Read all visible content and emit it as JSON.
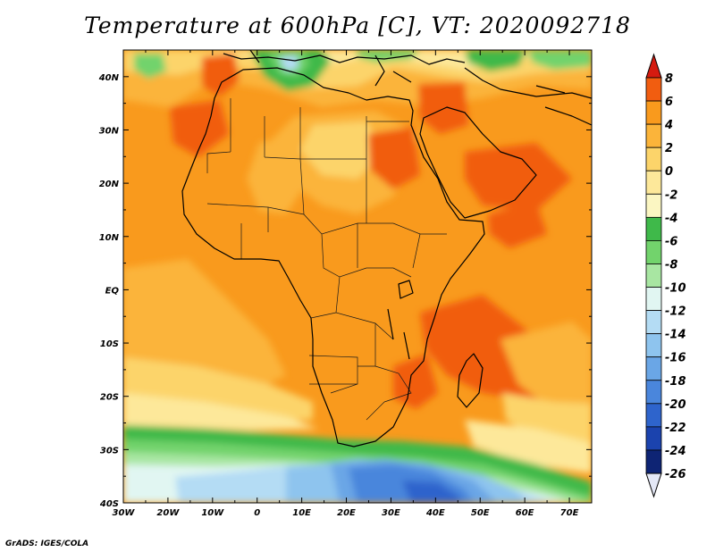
{
  "title": "Temperature at 600hPa [C], VT: 2020092718",
  "footer": "GrADS: IGES/COLA",
  "map": {
    "lon_range": [
      -30,
      75
    ],
    "lat_range": [
      -40,
      45
    ],
    "lon_labels": [
      {
        "lon": -30,
        "text": "30W"
      },
      {
        "lon": -20,
        "text": "20W"
      },
      {
        "lon": -10,
        "text": "10W"
      },
      {
        "lon": 0,
        "text": "0"
      },
      {
        "lon": 10,
        "text": "10E"
      },
      {
        "lon": 20,
        "text": "20E"
      },
      {
        "lon": 30,
        "text": "30E"
      },
      {
        "lon": 40,
        "text": "40E"
      },
      {
        "lon": 50,
        "text": "50E"
      },
      {
        "lon": 60,
        "text": "60E"
      },
      {
        "lon": 70,
        "text": "70E"
      }
    ],
    "lat_labels": [
      {
        "lat": 40,
        "text": "40N"
      },
      {
        "lat": 30,
        "text": "30N"
      },
      {
        "lat": 20,
        "text": "20N"
      },
      {
        "lat": 10,
        "text": "10N"
      },
      {
        "lat": 0,
        "text": "EQ"
      },
      {
        "lat": -10,
        "text": "10S"
      },
      {
        "lat": -20,
        "text": "20S"
      },
      {
        "lat": -30,
        "text": "30S"
      },
      {
        "lat": -40,
        "text": "40S"
      }
    ]
  },
  "colorbar": {
    "levels": [
      {
        "label": "8",
        "color": "#e32310"
      },
      {
        "label": "6",
        "color": "#f15d10"
      },
      {
        "label": "4",
        "color": "#f99a1d"
      },
      {
        "label": "2",
        "color": "#fbb43a"
      },
      {
        "label": "0",
        "color": "#fcd46a"
      },
      {
        "label": "-2",
        "color": "#fde89a"
      },
      {
        "label": "-4",
        "color": "#fbf6c2"
      },
      {
        "label": "-6",
        "color": "#3fb94a"
      },
      {
        "label": "-8",
        "color": "#72d36c"
      },
      {
        "label": "-10",
        "color": "#a8e6a2"
      },
      {
        "label": "-12",
        "color": "#e1f6f2"
      },
      {
        "label": "-14",
        "color": "#b4dcf4"
      },
      {
        "label": "-16",
        "color": "#8ec4ee"
      },
      {
        "label": "-18",
        "color": "#6aa6e6"
      },
      {
        "label": "-20",
        "color": "#4a86dc"
      },
      {
        "label": "-22",
        "color": "#2e64cc"
      },
      {
        "label": "-24",
        "color": "#1b43ae"
      },
      {
        "label": "-26",
        "color": "#0e2474"
      }
    ],
    "over_color": "#d51b10",
    "under_color": "#e4e8f6"
  }
}
